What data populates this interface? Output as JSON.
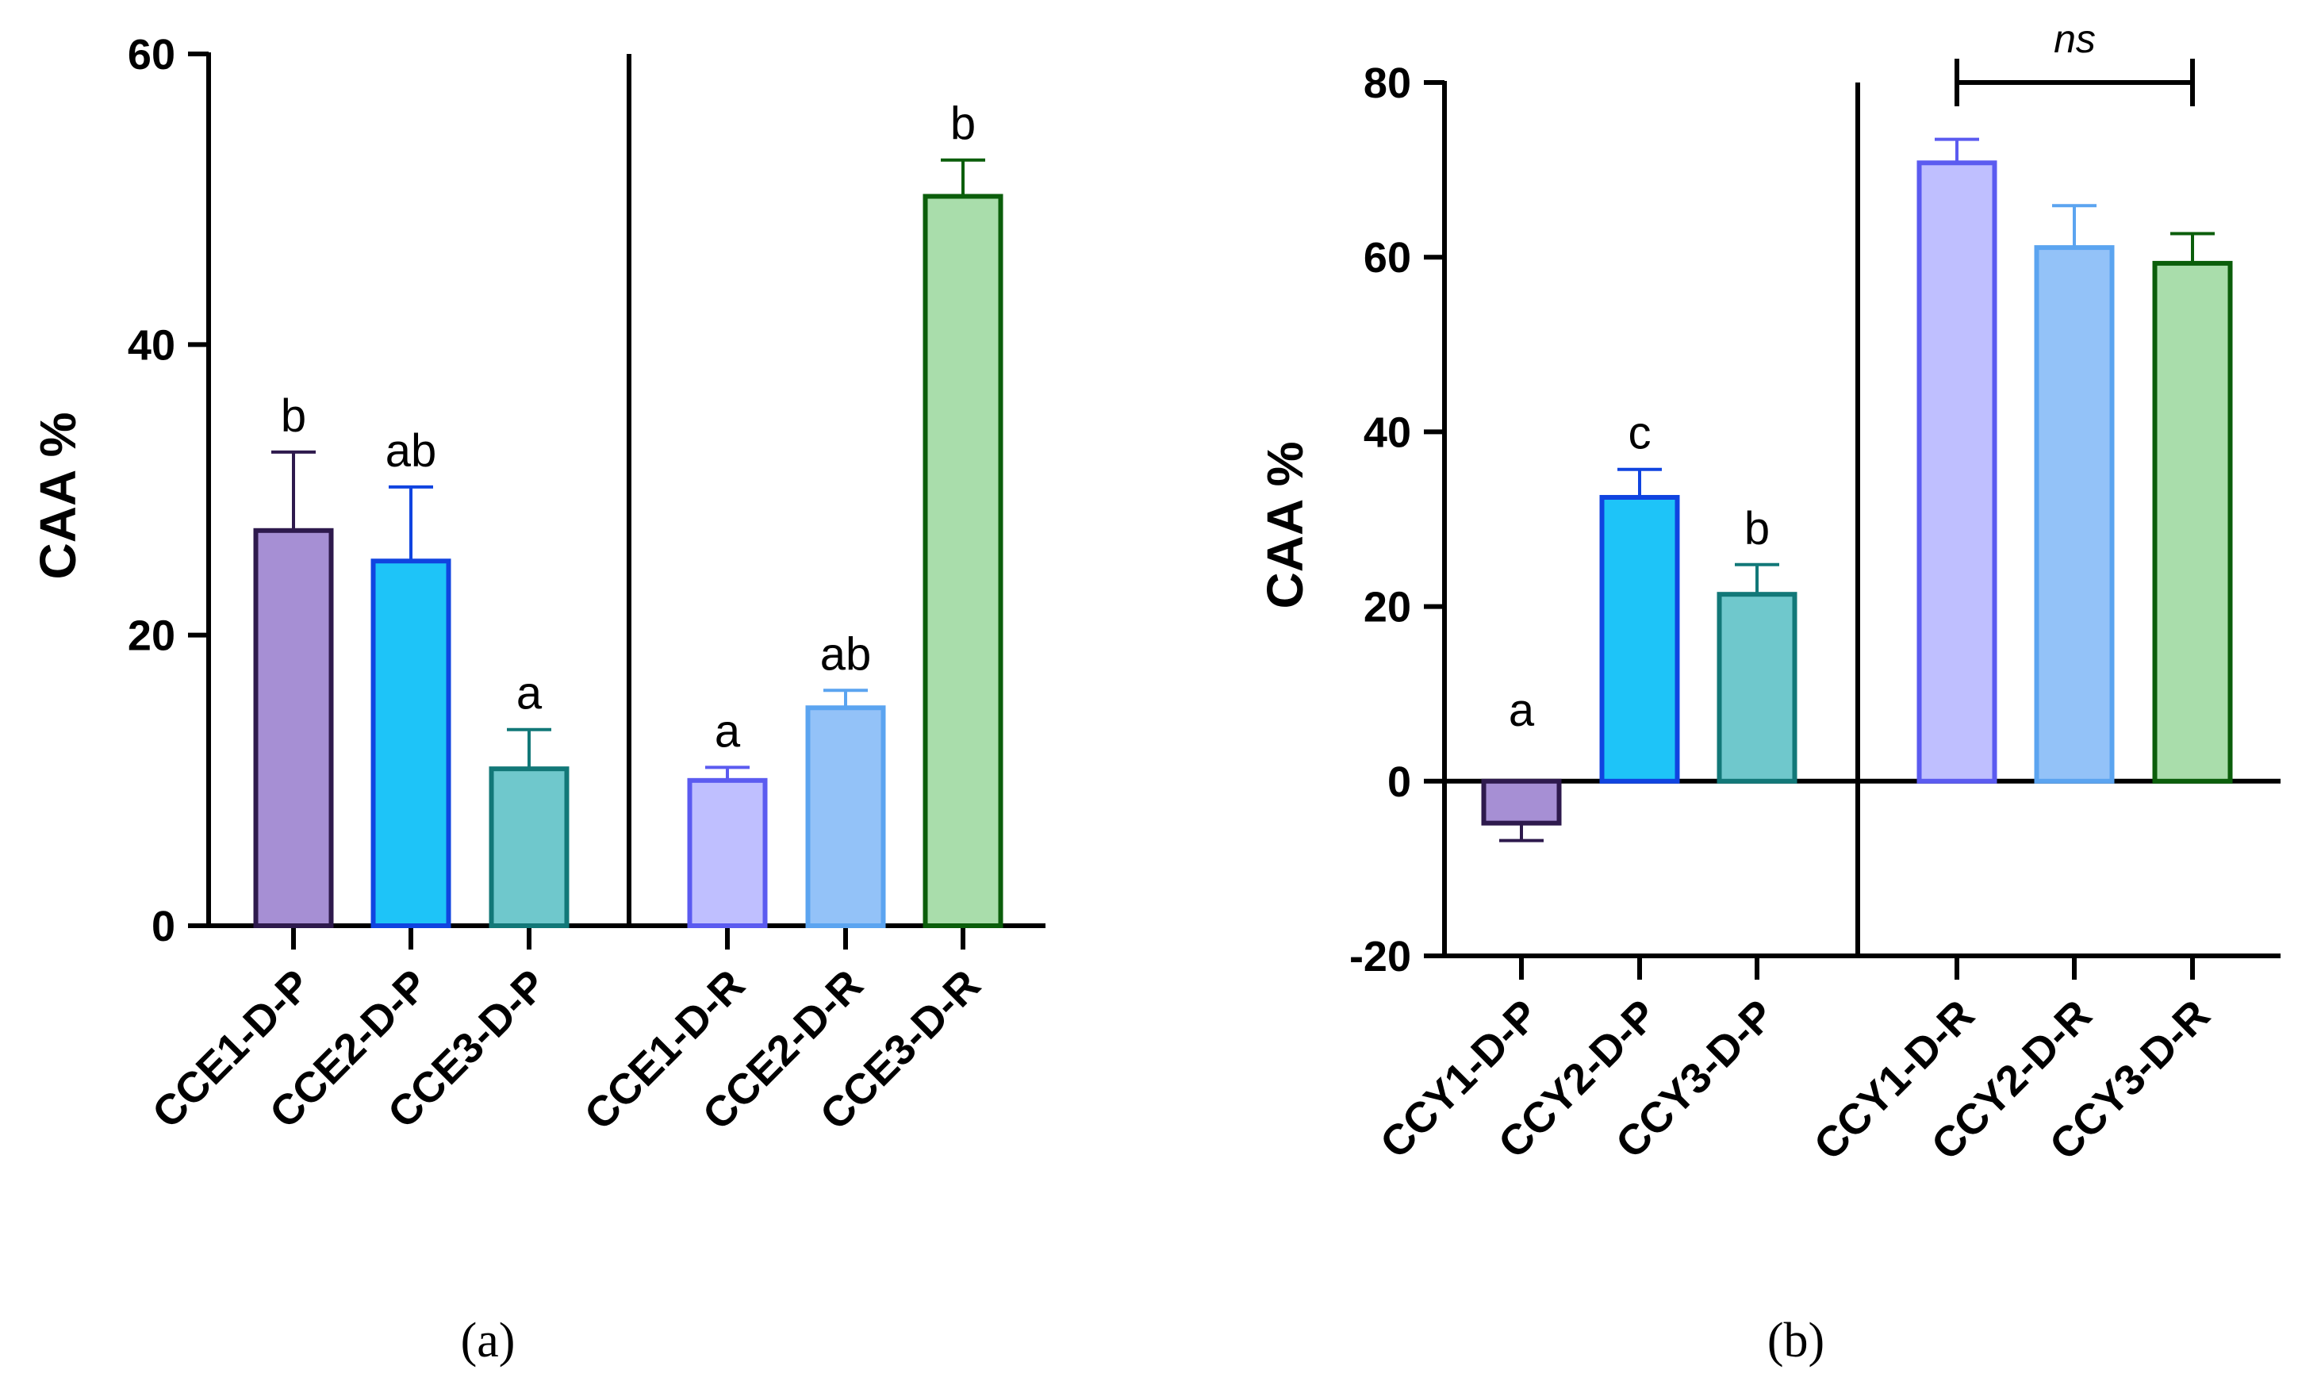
{
  "chart_data": [
    {
      "type": "bar",
      "panel": "(a)",
      "ylabel": "CAA %",
      "ylim": [
        0,
        60
      ],
      "yticks": [
        0,
        20,
        40,
        60
      ],
      "categories": [
        "CCE1-D-P",
        "CCE2-D-P",
        "CCE3-D-P",
        "CCE1-D-R",
        "CCE2-D-R",
        "CCE3-D-R"
      ],
      "values": [
        27.2,
        25.1,
        10.8,
        10.0,
        15.0,
        50.2
      ],
      "errors": [
        5.4,
        5.1,
        2.7,
        0.9,
        1.2,
        2.5
      ],
      "labels": [
        "b",
        "ab",
        "a",
        "a",
        "ab",
        "b"
      ],
      "fill_colors": [
        "#a68fd4",
        "#1ec4f8",
        "#6fc8cc",
        "#bfbfff",
        "#93c2f8",
        "#a9ddab"
      ],
      "stroke_colors": [
        "#2e1a4d",
        "#1044e0",
        "#127878",
        "#5b5bf0",
        "#5ba4f0",
        "#0b5e0b"
      ]
    },
    {
      "type": "bar",
      "panel": "(b)",
      "ylabel": "CAA %",
      "ylim": [
        -20,
        80
      ],
      "yticks": [
        -20,
        0,
        20,
        40,
        60,
        80
      ],
      "categories": [
        "CCY1-D-P",
        "CCY2-D-P",
        "CCY3-D-P",
        "CCY1-D-R",
        "CCY2-D-R",
        "CCY3-D-R"
      ],
      "values": [
        -4.8,
        32.5,
        21.4,
        70.8,
        61.1,
        59.3
      ],
      "errors": [
        2.0,
        3.2,
        3.4,
        2.7,
        4.8,
        3.4
      ],
      "labels": [
        "a",
        "c",
        "b",
        "",
        "",
        ""
      ],
      "fill_colors": [
        "#a68fd4",
        "#1ec4f8",
        "#6fc8cc",
        "#bfbfff",
        "#93c2f8",
        "#a9ddab"
      ],
      "stroke_colors": [
        "#2e1a4d",
        "#1044e0",
        "#127878",
        "#5b5bf0",
        "#5ba4f0",
        "#0b5e0b"
      ],
      "bracket": {
        "from": "CCY1-D-R",
        "to": "CCY3-D-R",
        "label": "ns"
      }
    }
  ]
}
